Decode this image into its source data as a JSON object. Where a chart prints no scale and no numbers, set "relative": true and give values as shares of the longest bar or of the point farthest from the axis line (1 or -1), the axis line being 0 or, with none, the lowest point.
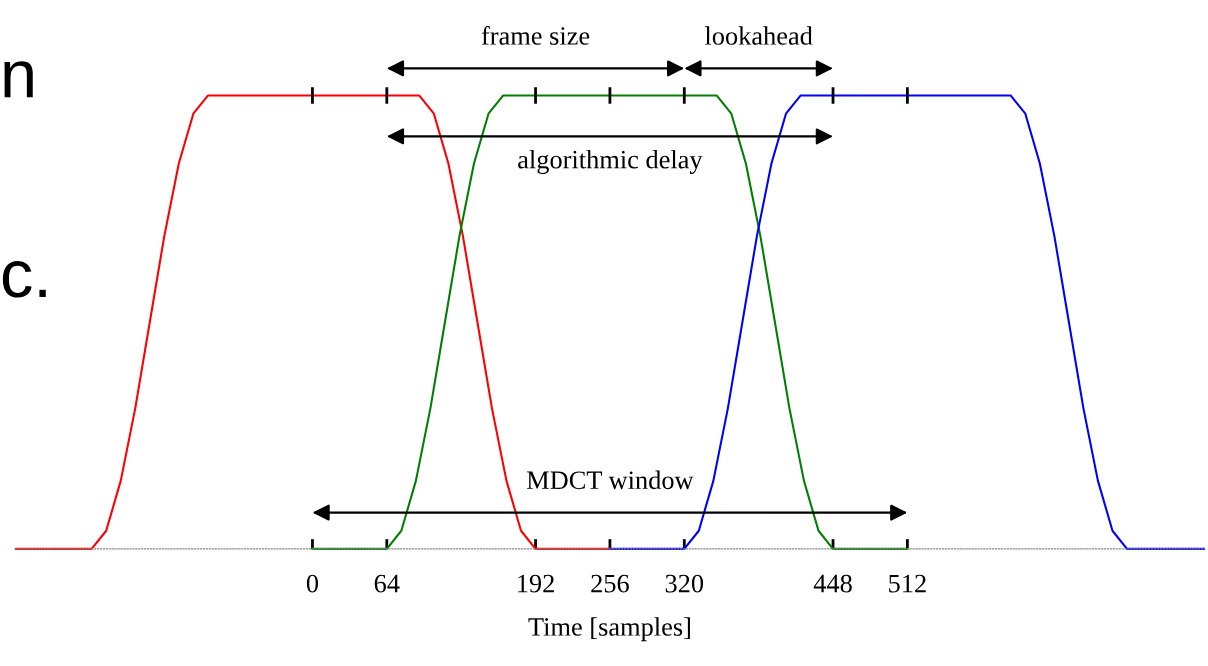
{
  "chart_data": {
    "type": "line",
    "relative": true,
    "xlabel": "Time [samples]",
    "xlim": [
      -256,
      768
    ],
    "xticks": [
      0,
      64,
      192,
      256,
      320,
      448,
      512
    ],
    "grid": false,
    "legend": false,
    "marker": "none",
    "line_style": "solid",
    "series": [
      {
        "color": "#ff0000",
        "x": [
          -256,
          -190,
          -177.5,
          -165,
          -152.5,
          -140,
          -127.5,
          -115,
          -102.5,
          -90,
          92,
          104.5,
          117,
          129.5,
          142,
          154.5,
          167,
          179.5,
          192,
          256
        ],
        "values": [
          0,
          0,
          0.04,
          0.15,
          0.31,
          0.5,
          0.69,
          0.85,
          0.96,
          1,
          1,
          0.96,
          0.85,
          0.69,
          0.5,
          0.31,
          0.15,
          0.04,
          0,
          0
        ]
      },
      {
        "color": "#008000",
        "x": [
          0,
          64,
          76.5,
          89,
          101.5,
          114,
          126.5,
          139,
          151.5,
          164,
          348,
          360.5,
          373,
          385.5,
          398,
          410.5,
          423,
          435.5,
          448,
          512
        ],
        "values": [
          0,
          0,
          0.04,
          0.15,
          0.31,
          0.5,
          0.69,
          0.85,
          0.96,
          1,
          1,
          0.96,
          0.85,
          0.69,
          0.5,
          0.31,
          0.15,
          0.04,
          0,
          0
        ]
      },
      {
        "color": "#0000ff",
        "x": [
          256,
          320,
          332.5,
          345,
          357.5,
          370,
          382.5,
          395,
          407.5,
          420,
          601,
          613.5,
          626,
          638.5,
          651,
          663.5,
          676,
          688.5,
          701,
          768
        ],
        "values": [
          0,
          0,
          0.04,
          0.15,
          0.31,
          0.5,
          0.69,
          0.85,
          0.96,
          1,
          1,
          0.96,
          0.85,
          0.69,
          0.5,
          0.31,
          0.15,
          0.04,
          0,
          0
        ]
      }
    ],
    "annotations": [
      "frame size",
      "lookahead",
      "algorithmic delay",
      "MDCT window",
      "n",
      "c."
    ]
  }
}
